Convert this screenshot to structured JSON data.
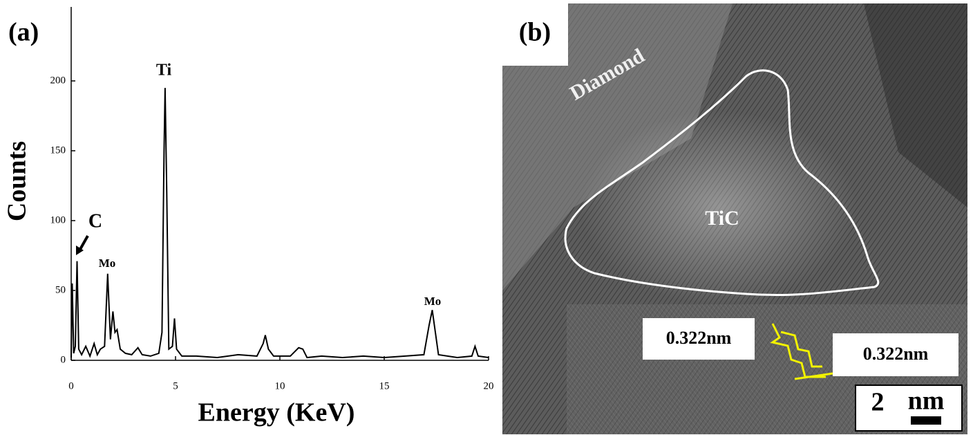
{
  "chart_data": {
    "type": "line",
    "panel_label": "(a)",
    "x_label": "Energy (KeV)",
    "y_label": "Counts",
    "x": [
      0.0,
      0.05,
      0.12,
      0.2,
      0.28,
      0.36,
      0.5,
      0.7,
      0.9,
      1.1,
      1.25,
      1.4,
      1.6,
      1.75,
      1.88,
      2.0,
      2.1,
      2.2,
      2.35,
      2.6,
      2.9,
      3.2,
      3.4,
      3.8,
      4.2,
      4.35,
      4.45,
      4.5,
      4.58,
      4.68,
      4.85,
      4.95,
      5.05,
      5.3,
      6,
      7,
      8,
      8.9,
      9.2,
      9.3,
      9.45,
      9.7,
      10.5,
      10.9,
      11.1,
      11.3,
      12,
      13,
      14,
      15,
      16,
      16.9,
      17.15,
      17.3,
      17.45,
      17.6,
      18.5,
      19.2,
      19.35,
      19.5,
      20
    ],
    "values": [
      2,
      55,
      5,
      10,
      71,
      8,
      4,
      10,
      3,
      12,
      4,
      8,
      10,
      62,
      15,
      35,
      20,
      22,
      8,
      5,
      4,
      9,
      4,
      3,
      5,
      20,
      150,
      195,
      120,
      8,
      10,
      30,
      8,
      3,
      3,
      2,
      4,
      3,
      12,
      18,
      8,
      3,
      3,
      9,
      8,
      2,
      3,
      2,
      3,
      2,
      3,
      4,
      25,
      36,
      20,
      4,
      2,
      3,
      10,
      3,
      2
    ],
    "color": "#000000",
    "xlim": [
      0,
      20
    ],
    "xticks": [
      0,
      5,
      10,
      15,
      20
    ],
    "ylim": [
      0,
      250
    ],
    "yticks": [
      0,
      50,
      100,
      150,
      200
    ],
    "annotations": [
      "Ti",
      "C",
      "Mo",
      "Mo"
    ]
  },
  "image_panel": {
    "panel_label": "(b)",
    "labels": [
      "Diamond",
      "TiC"
    ],
    "spacings": [
      "0.322nm",
      "0.322nm"
    ],
    "scale_bar": {
      "value": "2",
      "unit": "nm"
    }
  }
}
